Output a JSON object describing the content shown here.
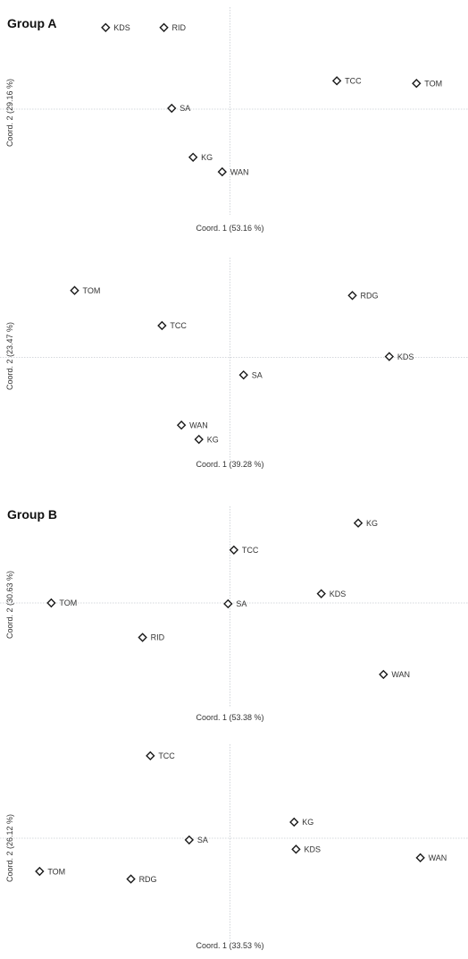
{
  "groups": [
    {
      "title": "Group A"
    },
    {
      "title": "Group B"
    }
  ],
  "chart_data": [
    {
      "type": "scatter",
      "group": "Group A",
      "xlabel": "Coord. 1 (53.16 %)",
      "ylabel": "Coord. 2 (29.16 %)",
      "xlim": [
        -1.0,
        1.0
      ],
      "ylim": [
        -1.0,
        1.0
      ],
      "grid": false,
      "points": [
        {
          "label": "KDS",
          "x": -0.64,
          "y": 0.95
        },
        {
          "label": "RID",
          "x": -0.34,
          "y": 0.95
        },
        {
          "label": "TCC",
          "x": 0.55,
          "y": 0.33
        },
        {
          "label": "TOM",
          "x": 0.96,
          "y": 0.3
        },
        {
          "label": "SA",
          "x": -0.3,
          "y": 0.01
        },
        {
          "label": "WAN",
          "x": -0.04,
          "y": -0.73
        },
        {
          "label": "KG",
          "x": -0.19,
          "y": -0.56
        }
      ]
    },
    {
      "type": "scatter",
      "group": "Group A",
      "xlabel": "Coord. 1 (39.28 %)",
      "ylabel": "Coord. 2 (23.47 %)",
      "xlim": [
        -1.0,
        1.0
      ],
      "ylim": [
        -1.0,
        1.0
      ],
      "grid": false,
      "points": [
        {
          "label": "TOM",
          "x": -0.8,
          "y": 0.8
        },
        {
          "label": "RDG",
          "x": 0.63,
          "y": 0.74
        },
        {
          "label": "TCC",
          "x": -0.35,
          "y": 0.38
        },
        {
          "label": "KDS",
          "x": 0.82,
          "y": 0.01
        },
        {
          "label": "SA",
          "x": 0.07,
          "y": -0.21
        },
        {
          "label": "WAN",
          "x": -0.25,
          "y": -0.81
        },
        {
          "label": "KG",
          "x": -0.16,
          "y": -0.98
        }
      ]
    },
    {
      "type": "scatter",
      "group": "Group B",
      "xlabel": "Coord. 1 (53.38 %)",
      "ylabel": "Coord. 2 (30.63 %)",
      "xlim": [
        -1.0,
        1.0
      ],
      "ylim": [
        -1.0,
        1.0
      ],
      "grid": false,
      "points": [
        {
          "label": "KG",
          "x": 0.66,
          "y": 0.95
        },
        {
          "label": "TCC",
          "x": 0.02,
          "y": 0.63
        },
        {
          "label": "KDS",
          "x": 0.47,
          "y": 0.11
        },
        {
          "label": "TOM",
          "x": -0.92,
          "y": 0.0
        },
        {
          "label": "SA",
          "x": -0.01,
          "y": -0.01
        },
        {
          "label": "RID",
          "x": -0.45,
          "y": -0.41
        },
        {
          "label": "WAN",
          "x": 0.79,
          "y": -0.85
        }
      ]
    },
    {
      "type": "scatter",
      "group": "Group B",
      "xlabel": "Coord. 1 (33.53 %)",
      "ylabel": "Coord. 2 (26.12 %)",
      "xlim": [
        -1.0,
        1.0
      ],
      "ylim": [
        -1.0,
        1.0
      ],
      "grid": false,
      "points": [
        {
          "label": "TCC",
          "x": -0.41,
          "y": 0.97
        },
        {
          "label": "KG",
          "x": 0.33,
          "y": 0.19
        },
        {
          "label": "SA",
          "x": -0.21,
          "y": -0.02
        },
        {
          "label": "KDS",
          "x": 0.34,
          "y": -0.13
        },
        {
          "label": "WAN",
          "x": 0.98,
          "y": -0.23
        },
        {
          "label": "TOM",
          "x": -0.98,
          "y": -0.39
        },
        {
          "label": "RDG",
          "x": -0.51,
          "y": -0.48
        }
      ]
    }
  ]
}
